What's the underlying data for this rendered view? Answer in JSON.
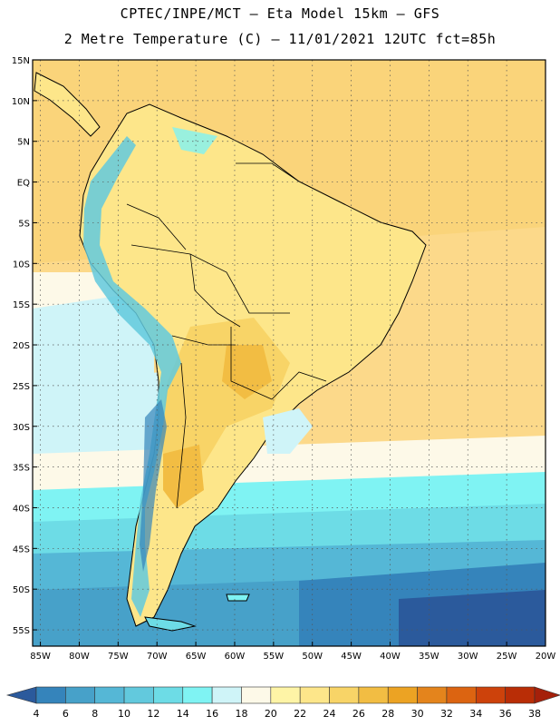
{
  "header": {
    "line1": "CPTEC/INPE/MCT —  Eta Model 15km — GFS",
    "line2": "2 Metre Temperature (C) — 11/01/2021 12UTC fct=85h"
  },
  "map": {
    "lat_labels": [
      "15N",
      "10N",
      "5N",
      "EQ",
      "5S",
      "10S",
      "15S",
      "20S",
      "25S",
      "30S",
      "35S",
      "40S",
      "45S",
      "50S",
      "55S"
    ],
    "lon_labels": [
      "85W",
      "80W",
      "75W",
      "70W",
      "65W",
      "60W",
      "55W",
      "50W",
      "45W",
      "40W",
      "35W",
      "30W",
      "25W",
      "20W"
    ],
    "lat_range": [
      15,
      -57
    ],
    "lon_range": [
      -86,
      -20
    ],
    "grid": true
  },
  "legend": {
    "ticks": [
      "4",
      "6",
      "8",
      "10",
      "12",
      "14",
      "16",
      "18",
      "20",
      "22",
      "24",
      "26",
      "28",
      "30",
      "32",
      "34",
      "36",
      "38"
    ],
    "colors": [
      "#2b5a9c",
      "#3584bb",
      "#47a1c9",
      "#55b7d6",
      "#62c9dd",
      "#6ddce6",
      "#7ff3f3",
      "#cff4f8",
      "#fdf9e8",
      "#fef4a6",
      "#fde68a",
      "#f8d467",
      "#f2bd43",
      "#eca323",
      "#e4841c",
      "#dc6411",
      "#cd420b",
      "#b92d06",
      "#a5200a"
    ]
  }
}
